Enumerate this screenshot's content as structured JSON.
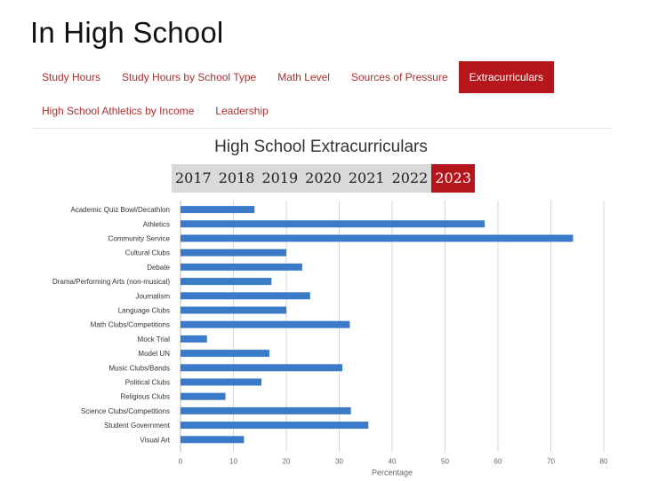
{
  "page": {
    "title": "In High School"
  },
  "tabs": [
    {
      "label": "Study Hours",
      "active": false
    },
    {
      "label": "Study Hours by School Type",
      "active": false
    },
    {
      "label": "Math Level",
      "active": false
    },
    {
      "label": "Sources of Pressure",
      "active": false
    },
    {
      "label": "Extracurriculars",
      "active": true
    },
    {
      "label": "High School Athletics by Income",
      "active": false
    },
    {
      "label": "Leadership",
      "active": false
    }
  ],
  "years": {
    "options": [
      "2017",
      "2018",
      "2019",
      "2020",
      "2021",
      "2022",
      "2023"
    ],
    "selected": "2023"
  },
  "colors": {
    "accent": "#b5161b",
    "bar": "#3a7ac8",
    "tab_text": "#a63030"
  },
  "chart_data": {
    "type": "bar",
    "orientation": "horizontal",
    "title": "High School Extracurriculars",
    "xlabel": "Percentage",
    "ylabel": "",
    "xlim": [
      0,
      80
    ],
    "xticks": [
      0,
      10,
      20,
      30,
      40,
      50,
      60,
      70,
      80
    ],
    "grid": "vertical",
    "categories": [
      "Academic Quiz Bowl/Decathlon",
      "Athletics",
      "Community Service",
      "Cultural Clubs",
      "Debate",
      "Drama/Performing Arts (non-musical)",
      "Journalism",
      "Language Clubs",
      "Math Clubs/Competitions",
      "Mock Trial",
      "Model UN",
      "Music Clubs/Bands",
      "Political Clubs",
      "Religious Clubs",
      "Science Clubs/Competitions",
      "Student Government",
      "Visual Art"
    ],
    "values": [
      14,
      57.5,
      74.2,
      20,
      23,
      17.2,
      24.5,
      20,
      32,
      5,
      16.8,
      30.6,
      15.3,
      8.5,
      32.2,
      35.5,
      12
    ]
  }
}
